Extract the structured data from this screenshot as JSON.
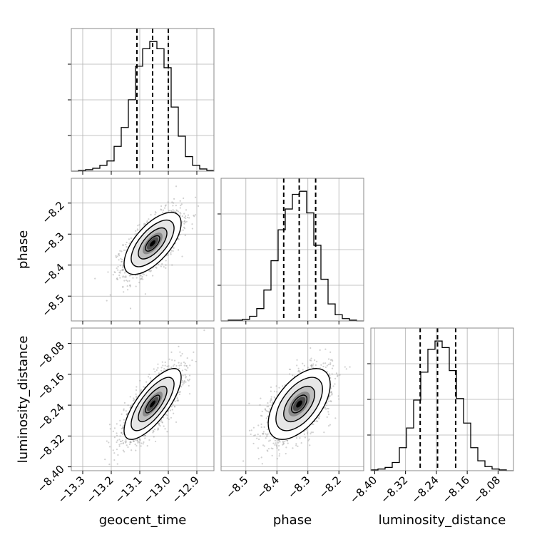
{
  "chart_data": {
    "type": "corner",
    "grid": true,
    "parameters": [
      {
        "label": "geocent_time",
        "range": [
          -13.34,
          -12.84
        ],
        "ticks": [
          "−13.3",
          "−13.2",
          "−13.1",
          "−13.0",
          "−12.9"
        ],
        "tick_values": [
          -13.3,
          -13.2,
          -13.1,
          -13.0,
          -12.9
        ],
        "quantiles": [
          -13.11,
          -13.055,
          -13.0
        ]
      },
      {
        "label": "phase",
        "range": [
          -8.58,
          -8.12
        ],
        "ticks": [
          "−8.5",
          "−8.4",
          "−8.3",
          "−8.2"
        ],
        "tick_values": [
          -8.5,
          -8.4,
          -8.3,
          -8.2
        ],
        "quantiles": [
          -8.378,
          -8.328,
          -8.275
        ]
      },
      {
        "label": "luminosity_distance",
        "range": [
          -8.41,
          -8.04
        ],
        "ticks": [
          "−8.40",
          "−8.32",
          "−8.24",
          "−8.16",
          "−8.08"
        ],
        "tick_values": [
          -8.4,
          -8.32,
          -8.24,
          -8.16,
          -8.08
        ],
        "quantiles": [
          -8.282,
          -8.237,
          -8.19
        ]
      }
    ],
    "histograms": [
      {
        "param": "geocent_time",
        "bin_edges": [
          -13.34,
          -13.315,
          -13.29,
          -13.265,
          -13.24,
          -13.215,
          -13.19,
          -13.165,
          -13.14,
          -13.115,
          -13.09,
          -13.065,
          -13.04,
          -13.015,
          -12.99,
          -12.965,
          -12.94,
          -12.915,
          -12.89,
          -12.865,
          -12.84
        ],
        "counts": [
          0,
          1,
          2,
          4,
          8,
          14,
          34,
          60,
          98,
          144,
          168,
          178,
          168,
          142,
          88,
          48,
          20,
          8,
          3,
          1
        ]
      },
      {
        "param": "phase",
        "bin_edges": [
          -8.58,
          -8.557,
          -8.534,
          -8.511,
          -8.488,
          -8.465,
          -8.442,
          -8.419,
          -8.396,
          -8.373,
          -8.35,
          -8.327,
          -8.304,
          -8.281,
          -8.258,
          -8.235,
          -8.212,
          -8.189,
          -8.166,
          -8.143,
          -8.12
        ],
        "counts": [
          0,
          1,
          1,
          2,
          6,
          16,
          40,
          78,
          118,
          145,
          164,
          168,
          140,
          98,
          54,
          22,
          8,
          3,
          1,
          0
        ]
      },
      {
        "param": "luminosity_distance",
        "bin_edges": [
          -8.41,
          -8.3915,
          -8.373,
          -8.3545,
          -8.336,
          -8.3175,
          -8.299,
          -8.2805,
          -8.262,
          -8.2435,
          -8.225,
          -8.2065,
          -8.188,
          -8.1695,
          -8.151,
          -8.1325,
          -8.114,
          -8.0955,
          -8.077,
          -8.0585,
          -8.04
        ],
        "counts": [
          1,
          2,
          4,
          10,
          28,
          52,
          86,
          120,
          148,
          158,
          150,
          122,
          88,
          58,
          28,
          12,
          5,
          2,
          1,
          0
        ]
      }
    ],
    "joint": [
      {
        "x": "geocent_time",
        "y": "phase",
        "center": [
          -13.055,
          -8.33
        ],
        "sigma": [
          0.05,
          0.05
        ],
        "correlation": 0.65
      },
      {
        "x": "geocent_time",
        "y": "luminosity_distance",
        "center": [
          -13.055,
          -8.237
        ],
        "sigma": [
          0.05,
          0.046
        ],
        "correlation": 0.75
      },
      {
        "x": "phase",
        "y": "luminosity_distance",
        "center": [
          -8.328,
          -8.237
        ],
        "sigma": [
          0.05,
          0.046
        ],
        "correlation": 0.55
      }
    ],
    "contour_levels_sigma": [
      0.5,
      1.0,
      1.5,
      2.0
    ]
  }
}
